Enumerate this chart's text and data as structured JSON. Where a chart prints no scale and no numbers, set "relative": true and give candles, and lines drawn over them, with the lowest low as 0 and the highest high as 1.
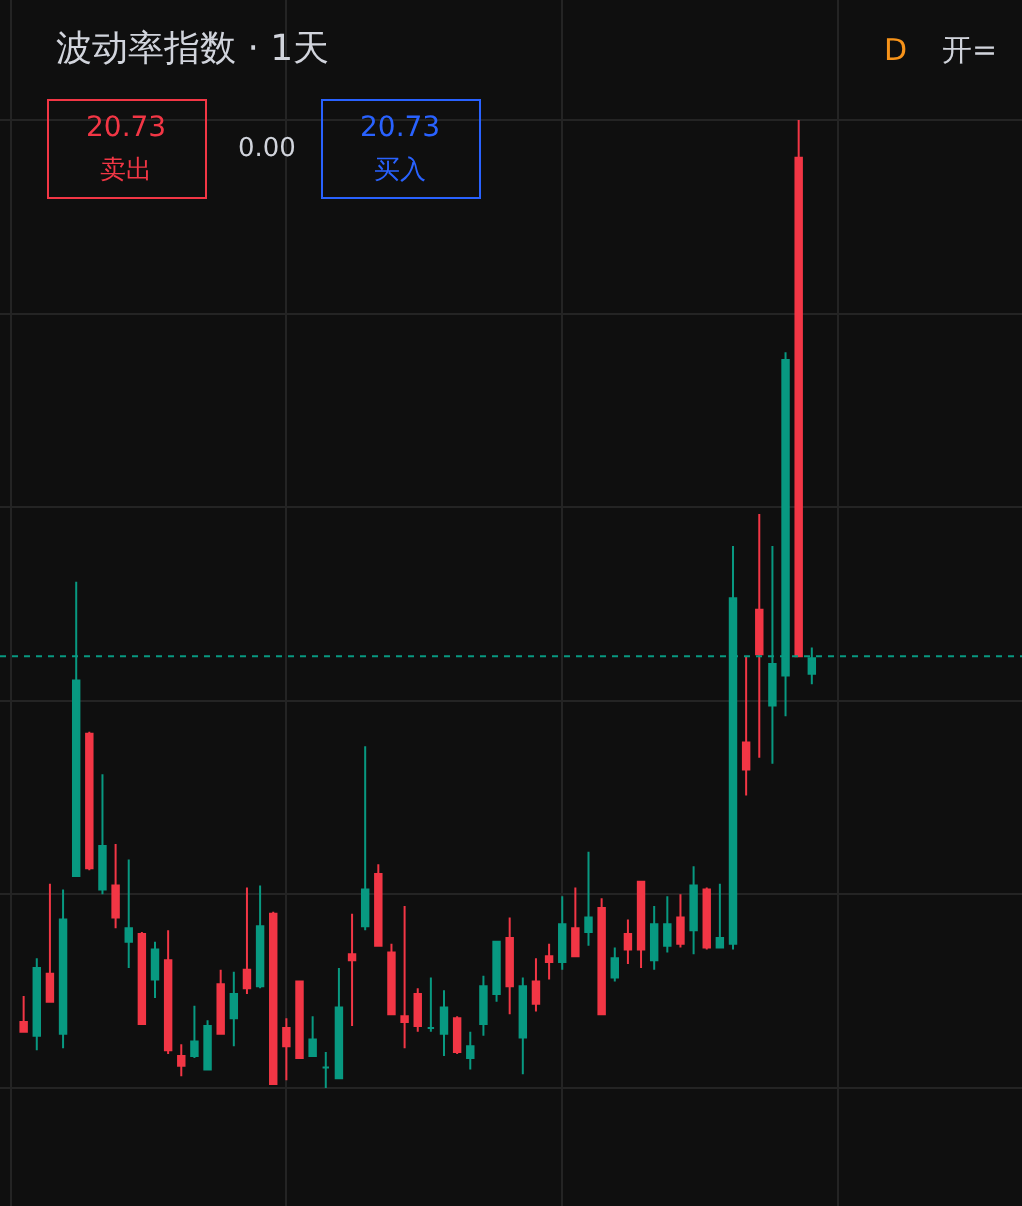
{
  "chart_data": {
    "type": "candlestick",
    "title": "波动率指数 · 1天",
    "relative": true,
    "grid": true,
    "categories": [
      null,
      null,
      null,
      null,
      null,
      null,
      null,
      null,
      null,
      null,
      null,
      null,
      null,
      null,
      null,
      null,
      null,
      null,
      null,
      null,
      null,
      null,
      null,
      null,
      null,
      null,
      null,
      null,
      null,
      null,
      null,
      null,
      null,
      null,
      null,
      null,
      null,
      null,
      null,
      null,
      null,
      null,
      null,
      null,
      null,
      null,
      null,
      null,
      null,
      null,
      null,
      null,
      null,
      null,
      null,
      null,
      null,
      null,
      null,
      null,
      null
    ],
    "ohlc": [
      [
        0.068,
        0.095,
        0.058,
        0.058
      ],
      [
        0.054,
        0.134,
        0.039,
        0.124
      ],
      [
        0.118,
        0.211,
        0.089,
        0.089
      ],
      [
        0.056,
        0.205,
        0.041,
        0.174
      ],
      [
        0.219,
        0.523,
        0.219,
        0.421
      ],
      [
        0.366,
        0.368,
        0.225,
        0.227
      ],
      [
        0.205,
        0.324,
        0.2,
        0.25
      ],
      [
        0.209,
        0.252,
        0.165,
        0.176
      ],
      [
        0.151,
        0.236,
        0.124,
        0.165
      ],
      [
        0.159,
        0.161,
        0.066,
        0.066
      ],
      [
        0.112,
        0.151,
        0.093,
        0.143
      ],
      [
        0.132,
        0.163,
        0.035,
        0.039
      ],
      [
        0.033,
        0.045,
        0.012,
        0.023
      ],
      [
        0.033,
        0.085,
        0.031,
        0.048
      ],
      [
        0.019,
        0.07,
        0.019,
        0.064
      ],
      [
        0.107,
        0.122,
        0.056,
        0.056
      ],
      [
        0.072,
        0.12,
        0.043,
        0.097
      ],
      [
        0.122,
        0.207,
        0.097,
        0.103
      ],
      [
        0.105,
        0.209,
        0.103,
        0.167
      ],
      [
        0.18,
        0.182,
        0.004,
        0.004
      ],
      [
        0.062,
        0.072,
        0.008,
        0.043
      ],
      [
        0.11,
        0.11,
        0.031,
        0.031
      ],
      [
        0.033,
        0.074,
        0.033,
        0.05
      ],
      [
        0.021,
        0.037,
        0.0,
        0.021
      ],
      [
        0.01,
        0.124,
        0.01,
        0.083
      ],
      [
        0.138,
        0.18,
        0.064,
        0.132
      ],
      [
        0.167,
        0.353,
        0.163,
        0.205
      ],
      [
        0.221,
        0.231,
        0.147,
        0.147
      ],
      [
        0.14,
        0.149,
        0.076,
        0.076
      ],
      [
        0.074,
        0.188,
        0.041,
        0.068
      ],
      [
        0.097,
        0.103,
        0.058,
        0.064
      ],
      [
        0.062,
        0.114,
        0.058,
        0.062
      ],
      [
        0.056,
        0.101,
        0.033,
        0.083
      ],
      [
        0.072,
        0.074,
        0.035,
        0.037
      ],
      [
        0.031,
        0.058,
        0.019,
        0.043
      ],
      [
        0.066,
        0.116,
        0.054,
        0.105
      ],
      [
        0.097,
        0.151,
        0.089,
        0.151
      ],
      [
        0.155,
        0.176,
        0.076,
        0.105
      ],
      [
        0.052,
        0.114,
        0.014,
        0.105
      ],
      [
        0.11,
        0.134,
        0.079,
        0.087
      ],
      [
        0.136,
        0.149,
        0.112,
        0.13
      ],
      [
        0.13,
        0.198,
        0.122,
        0.169
      ],
      [
        0.165,
        0.207,
        0.136,
        0.136
      ],
      [
        0.161,
        0.244,
        0.147,
        0.176
      ],
      [
        0.186,
        0.196,
        0.076,
        0.076
      ],
      [
        0.114,
        0.145,
        0.11,
        0.134
      ],
      [
        0.159,
        0.174,
        0.128,
        0.143
      ],
      [
        0.213,
        0.213,
        0.124,
        0.143
      ],
      [
        0.132,
        0.188,
        0.122,
        0.169
      ],
      [
        0.147,
        0.198,
        0.14,
        0.169
      ],
      [
        0.176,
        0.2,
        0.145,
        0.149
      ],
      [
        0.163,
        0.229,
        0.138,
        0.209
      ],
      [
        0.205,
        0.207,
        0.143,
        0.145
      ],
      [
        0.145,
        0.211,
        0.145,
        0.155
      ],
      [
        0.149,
        0.56,
        0.143,
        0.506
      ],
      [
        0.357,
        0.446,
        0.302,
        0.329
      ],
      [
        0.494,
        0.593,
        0.341,
        0.448
      ],
      [
        0.395,
        0.56,
        0.335,
        0.438
      ],
      [
        0.426,
        0.76,
        0.384,
        0.752
      ],
      [
        0.961,
        1,
        0.446,
        0.446
      ],
      [
        0.428,
        0.455,
        0.417,
        0.444
      ]
    ],
    "colors": [
      "#f23645",
      "#089981",
      "#f23645",
      "#089981",
      "#089981",
      "#f23645",
      "#089981",
      "#f23645",
      "#089981",
      "#f23645",
      "#089981",
      "#f23645",
      "#f23645",
      "#089981",
      "#089981",
      "#f23645",
      "#089981",
      "#f23645",
      "#089981",
      "#f23645",
      "#f23645",
      "#f23645",
      "#089981",
      "#089981",
      "#089981",
      "#f23645",
      "#089981",
      "#f23645",
      "#f23645",
      "#f23645",
      "#f23645",
      "#089981",
      "#089981",
      "#f23645",
      "#089981",
      "#089981",
      "#089981",
      "#f23645",
      "#089981",
      "#f23645",
      "#f23645",
      "#089981",
      "#f23645",
      "#089981",
      "#f23645",
      "#089981",
      "#f23645",
      "#f23645",
      "#089981",
      "#089981",
      "#f23645",
      "#089981",
      "#f23645",
      "#089981",
      "#089981",
      "#f23645",
      "#f23645",
      "#089981",
      "#089981",
      "#f23645",
      "#089981"
    ],
    "ref_lines": [
      {
        "axis": "y",
        "value": 0.446,
        "color": "#089981",
        "line_style": "dotted"
      }
    ],
    "annotations": [
      "20.73",
      "卖出",
      "0.00",
      "20.73",
      "买入",
      "D",
      "开="
    ]
  }
}
